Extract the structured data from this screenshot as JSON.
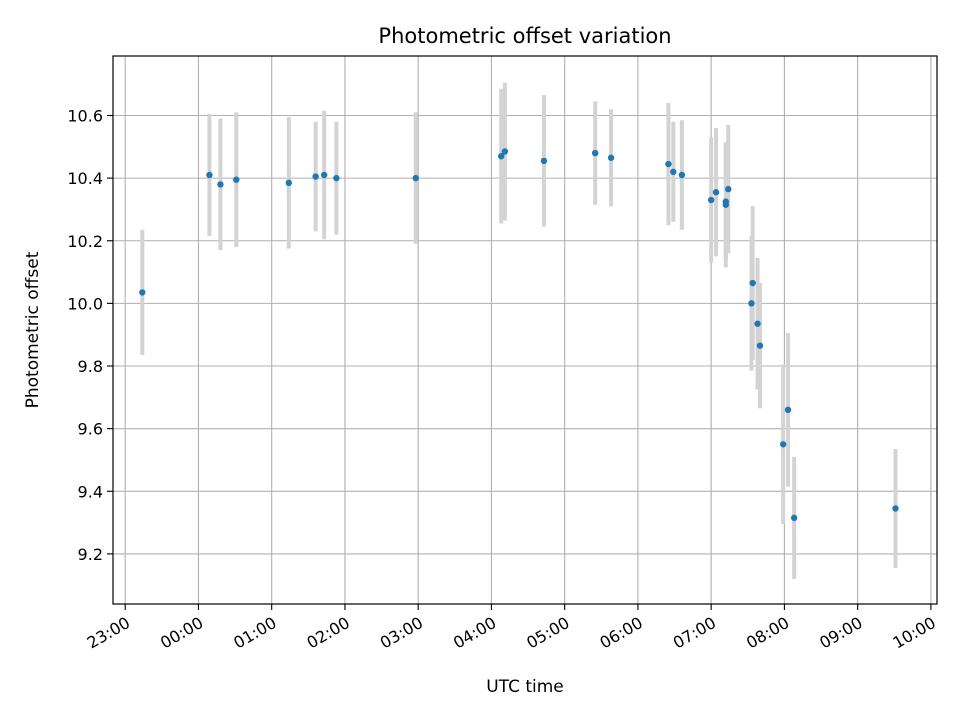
{
  "chart_data": {
    "type": "scatter",
    "title": "Photometric offset variation",
    "xlabel": "UTC time",
    "ylabel": "Photometric offset",
    "grid": true,
    "x_is_time": true,
    "xlim": [
      "22:50",
      "10:05"
    ],
    "ylim": [
      9.04,
      10.79
    ],
    "x_ticks": [
      "23:00",
      "00:00",
      "01:00",
      "02:00",
      "03:00",
      "04:00",
      "05:00",
      "06:00",
      "07:00",
      "08:00",
      "09:00",
      "10:00"
    ],
    "y_ticks": [
      9.2,
      9.4,
      9.6,
      9.8,
      10.0,
      10.2,
      10.4,
      10.6
    ],
    "y_tick_labels": [
      "9.2",
      "9.4",
      "9.6",
      "9.8",
      "10.0",
      "10.2",
      "10.4",
      "10.6"
    ],
    "marker_color": "#1f77b4",
    "errorbar_color": "#d3d3d3",
    "points": [
      {
        "time": "23:14",
        "y": 10.035,
        "err": 0.2
      },
      {
        "time": "00:09",
        "y": 10.41,
        "err": 0.195
      },
      {
        "time": "00:18",
        "y": 10.38,
        "err": 0.21
      },
      {
        "time": "00:31",
        "y": 10.395,
        "err": 0.215
      },
      {
        "time": "01:14",
        "y": 10.385,
        "err": 0.21
      },
      {
        "time": "01:36",
        "y": 10.405,
        "err": 0.175
      },
      {
        "time": "01:43",
        "y": 10.41,
        "err": 0.205
      },
      {
        "time": "01:53",
        "y": 10.4,
        "err": 0.18
      },
      {
        "time": "02:58",
        "y": 10.4,
        "err": 0.21
      },
      {
        "time": "04:08",
        "y": 10.47,
        "err": 0.215
      },
      {
        "time": "04:11",
        "y": 10.485,
        "err": 0.22
      },
      {
        "time": "04:43",
        "y": 10.455,
        "err": 0.21
      },
      {
        "time": "05:25",
        "y": 10.48,
        "err": 0.165
      },
      {
        "time": "05:38",
        "y": 10.465,
        "err": 0.155
      },
      {
        "time": "06:25",
        "y": 10.445,
        "err": 0.195
      },
      {
        "time": "06:29",
        "y": 10.42,
        "err": 0.16
      },
      {
        "time": "06:36",
        "y": 10.41,
        "err": 0.175
      },
      {
        "time": "07:00",
        "y": 10.33,
        "err": 0.2
      },
      {
        "time": "07:04",
        "y": 10.355,
        "err": 0.205
      },
      {
        "time": "07:12",
        "y": 10.325,
        "err": 0.185
      },
      {
        "time": "07:12",
        "y": 10.315,
        "err": 0.2
      },
      {
        "time": "07:14",
        "y": 10.365,
        "err": 0.205
      },
      {
        "time": "07:33",
        "y": 10.0,
        "err": 0.215
      },
      {
        "time": "07:34",
        "y": 10.065,
        "err": 0.245
      },
      {
        "time": "07:38",
        "y": 9.935,
        "err": 0.21
      },
      {
        "time": "07:40",
        "y": 9.865,
        "err": 0.2
      },
      {
        "time": "07:59",
        "y": 9.55,
        "err": 0.255
      },
      {
        "time": "08:03",
        "y": 9.66,
        "err": 0.245
      },
      {
        "time": "08:08",
        "y": 9.315,
        "err": 0.195
      },
      {
        "time": "09:31",
        "y": 9.345,
        "err": 0.19
      }
    ]
  }
}
